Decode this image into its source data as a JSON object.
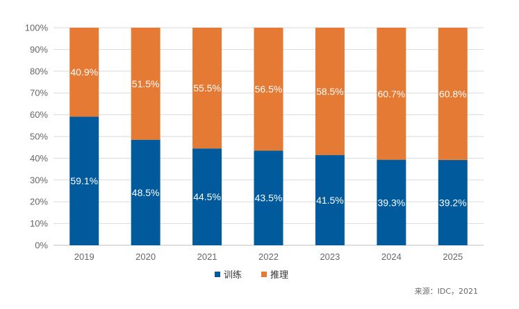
{
  "chart_data": {
    "type": "bar",
    "stacked": true,
    "categories": [
      "2019",
      "2020",
      "2021",
      "2022",
      "2023",
      "2024",
      "2025"
    ],
    "series": [
      {
        "name": "训练",
        "color": "#005a9c",
        "values": [
          59.1,
          48.5,
          44.5,
          43.5,
          41.5,
          39.3,
          39.2
        ],
        "labels": [
          "59.1%",
          "48.5%",
          "44.5%",
          "43.5%",
          "41.5%",
          "39.3%",
          "39.2%"
        ]
      },
      {
        "name": "推理",
        "color": "#e57a34",
        "values": [
          40.9,
          51.5,
          55.5,
          56.5,
          58.5,
          60.7,
          60.8
        ],
        "labels": [
          "40.9%",
          "51.5%",
          "55.5%",
          "56.5%",
          "58.5%",
          "60.7%",
          "60.8%"
        ]
      }
    ],
    "yticks": [
      "0%",
      "10%",
      "20%",
      "30%",
      "40%",
      "50%",
      "60%",
      "70%",
      "80%",
      "90%",
      "100%"
    ],
    "ylim": [
      0,
      100
    ],
    "grid": true,
    "legend_position": "bottom-center"
  },
  "source": "来源：IDC，2021"
}
